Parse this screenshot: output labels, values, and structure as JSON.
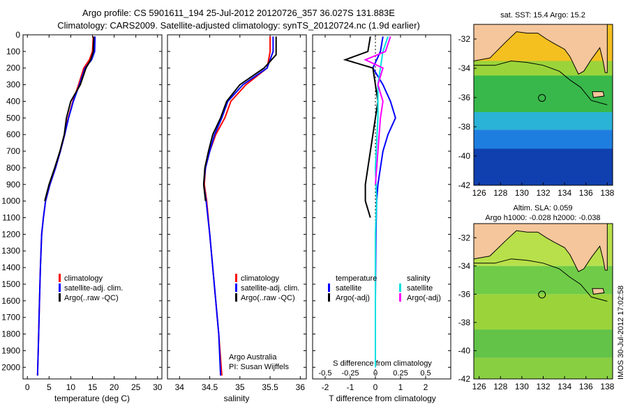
{
  "header": {
    "title_line1": "Argo profile: CS 5901611_194 25-Jul-2012 20120726_357 36.027S 131.883E",
    "title_line2": "Climatology: CARS2009. Satellite-adjusted climatology: synTS_20120724.nc (1.9d earlier)"
  },
  "colors": {
    "climatology": "#ff0000",
    "satellite": "#0000ff",
    "argo": "#000000",
    "sal_satellite": "#00e0e0",
    "sal_argo": "#ff00ff"
  },
  "chart_data": [
    {
      "type": "line",
      "id": "temperature",
      "xlabel": "temperature (deg C)",
      "xlim": [
        -1,
        31
      ],
      "ylim": [
        2070,
        0
      ],
      "xticks": [
        0,
        5,
        10,
        15,
        20,
        25,
        30
      ],
      "yticks": [
        0,
        100,
        200,
        300,
        400,
        500,
        600,
        700,
        800,
        900,
        1000,
        1100,
        1200,
        1300,
        1400,
        1500,
        1600,
        1700,
        1800,
        1900,
        2000
      ],
      "legend": [
        "climatology",
        "satellite-adj. clim.",
        "Argo(..raw -QC)"
      ],
      "series": [
        {
          "name": "climatology",
          "x": [
            15.2,
            15.0,
            14.3,
            13.0,
            11.8,
            10.5,
            9.4,
            8.6,
            7.6,
            6.5,
            5.2,
            4.2,
            3.7,
            3.3,
            3.0,
            2.8,
            2.6,
            2.5,
            2.4,
            2.35
          ],
          "y": [
            10,
            100,
            150,
            200,
            300,
            400,
            500,
            600,
            700,
            800,
            900,
            1000,
            1100,
            1200,
            1400,
            1600,
            1800,
            1900,
            2000,
            2050
          ]
        },
        {
          "name": "satellite-adj. clim.",
          "x": [
            15.6,
            15.5,
            14.8,
            13.3,
            12.0,
            10.6,
            9.5,
            8.6,
            7.6,
            6.5,
            5.2,
            4.2,
            3.7,
            3.3,
            3.0,
            2.8,
            2.6,
            2.5,
            2.4,
            2.35
          ],
          "y": [
            10,
            100,
            150,
            200,
            300,
            400,
            500,
            600,
            700,
            800,
            900,
            1000,
            1100,
            1200,
            1400,
            1600,
            1800,
            1900,
            2000,
            2050
          ]
        },
        {
          "name": "Argo(..raw -QC)",
          "x": [
            15.3,
            15.2,
            14.6,
            13.5,
            12.2,
            10.0,
            9.0,
            8.5,
            7.5,
            6.3,
            5.0,
            4.0
          ],
          "y": [
            10,
            100,
            150,
            200,
            300,
            400,
            500,
            600,
            700,
            800,
            900,
            1000
          ]
        }
      ]
    },
    {
      "type": "line",
      "id": "salinity",
      "xlabel": "salinity",
      "xlim": [
        33.8,
        36.1
      ],
      "ylim": [
        2070,
        0
      ],
      "xticks": [
        34,
        34.5,
        35,
        35.5,
        36
      ],
      "legend": [
        "climatology",
        "satellite-adj. clim.",
        "Argo(..raw -QC)"
      ],
      "annotation": [
        "Argo Australia",
        "PI: Susan Wijffels"
      ],
      "series": [
        {
          "name": "climatology",
          "x": [
            35.5,
            35.5,
            35.45,
            35.1,
            34.85,
            34.75,
            34.6,
            34.5,
            34.43,
            34.41,
            34.45,
            34.5,
            34.55,
            34.6,
            34.65,
            34.7
          ],
          "y": [
            10,
            100,
            200,
            300,
            400,
            500,
            600,
            700,
            800,
            900,
            1000,
            1200,
            1400,
            1600,
            1800,
            2050
          ]
        },
        {
          "name": "satellite-adj. clim.",
          "x": [
            35.55,
            35.55,
            35.45,
            35.05,
            34.8,
            34.7,
            34.58,
            34.5,
            34.43,
            34.4,
            34.44,
            34.5,
            34.55,
            34.6,
            34.65,
            34.68
          ],
          "y": [
            10,
            100,
            200,
            300,
            400,
            500,
            600,
            700,
            800,
            900,
            1000,
            1200,
            1400,
            1600,
            1800,
            2050
          ]
        },
        {
          "name": "Argo(..raw -QC)",
          "x": [
            35.6,
            35.6,
            35.4,
            35.0,
            34.78,
            34.68,
            34.55,
            34.48,
            34.42,
            34.4,
            34.43
          ],
          "y": [
            10,
            120,
            200,
            300,
            400,
            500,
            600,
            700,
            800,
            900,
            1000
          ]
        }
      ]
    },
    {
      "type": "line",
      "id": "difference",
      "xlabel": "T difference from climatology",
      "xlabel2": "S difference from climatology",
      "xlim": [
        -2.5,
        3
      ],
      "ylim": [
        2070,
        0
      ],
      "xticks": [
        -2,
        -1,
        0,
        1,
        2
      ],
      "xticks2": [
        "-0.5",
        "-0.25",
        "0",
        "0.25",
        "0.5"
      ],
      "legend_temperature": [
        "temperature",
        "satellite",
        "Argo(-adj)"
      ],
      "legend_salinity": [
        "salinity",
        "satellite",
        "Argo(-adj)"
      ],
      "series": [
        {
          "name": "temperature satellite",
          "x": [
            0.3,
            0.2,
            -0.1,
            0.3,
            0.6,
            0.8,
            0.5,
            0.3,
            0.2,
            0.1,
            0.05,
            0.02,
            0,
            0
          ],
          "y": [
            10,
            100,
            200,
            300,
            400,
            500,
            600,
            700,
            800,
            900,
            1000,
            1200,
            1600,
            2000
          ]
        },
        {
          "name": "temperature Argo(-adj)",
          "x": [
            -0.2,
            -0.3,
            -1.2,
            -0.1,
            0,
            0.1,
            0,
            -0.1,
            -0.3,
            -0.4,
            -0.4,
            -0.2
          ],
          "y": [
            10,
            100,
            150,
            200,
            300,
            400,
            500,
            600,
            800,
            900,
            1000,
            1100
          ]
        },
        {
          "name": "salinity satellite",
          "x": [
            0.5,
            0.3,
            0.2,
            0.1,
            0.1,
            0,
            0.05,
            0,
            0,
            0
          ],
          "y": [
            10,
            100,
            200,
            300,
            500,
            800,
            1000,
            1200,
            1600,
            2000
          ]
        },
        {
          "name": "salinity Argo(-adj)",
          "x": [
            0.6,
            0.4,
            -0.4,
            0.3,
            0.1,
            0.3,
            0.2,
            0.1,
            0
          ],
          "y": [
            10,
            100,
            150,
            200,
            300,
            400,
            500,
            700,
            900
          ]
        }
      ]
    }
  ],
  "maps": {
    "sst": {
      "title": "sat. SST: 15.4  Argo: 15.2"
    },
    "sla": {
      "title1": "Altim. SLA: 0.059",
      "title2": "Argo h1000: -0.028  h2000: -0.038"
    },
    "xticks": [
      "126",
      "128",
      "130",
      "132",
      "134",
      "136",
      "138"
    ],
    "yticks": [
      "-32",
      "-34",
      "-36",
      "-38",
      "-40",
      "-42"
    ],
    "float_lon": 131.883,
    "float_lat": -36.027
  },
  "signature": "IMOS 30-Jul-2012 17:02:58"
}
